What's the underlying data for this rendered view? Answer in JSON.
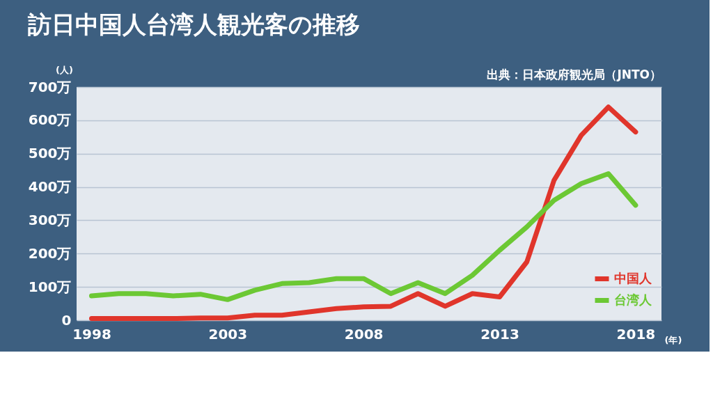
{
  "chart_data": {
    "type": "line",
    "title": "訪日中国人台湾人観光客の推移",
    "ylabel": "(人)",
    "xlabel": "(年)",
    "annotations": [
      "出典：日本政府観光局（JNTO）"
    ],
    "x": [
      1998,
      1999,
      2000,
      2001,
      2002,
      2003,
      2004,
      2005,
      2006,
      2007,
      2008,
      2009,
      2010,
      2011,
      2012,
      2013,
      2014,
      2015,
      2016,
      2017,
      2018
    ],
    "series": [
      {
        "name": "中国人",
        "color": "#e0352b",
        "values": [
          5,
          5,
          5,
          5,
          7,
          7,
          15,
          15,
          25,
          35,
          40,
          42,
          80,
          42,
          80,
          70,
          175,
          420,
          555,
          640,
          565
        ]
      },
      {
        "name": "台湾人",
        "color": "#6cc834",
        "values": [
          73,
          80,
          80,
          73,
          78,
          62,
          90,
          110,
          113,
          125,
          125,
          80,
          113,
          80,
          135,
          210,
          280,
          360,
          410,
          440,
          345
        ]
      }
    ],
    "xlim": [
      1997.45,
      2018.95
    ],
    "xticks": [
      1998,
      2003,
      2008,
      2013,
      2018
    ],
    "ylim": [
      0,
      700
    ],
    "yticks": [
      0,
      {
        "value": 100,
        "label": "100万"
      },
      {
        "value": 200,
        "label": "200万"
      },
      {
        "value": 300,
        "label": "300万"
      },
      {
        "value": 400,
        "label": "400万"
      },
      {
        "value": 500,
        "label": "500万"
      },
      {
        "value": 600,
        "label": "600万"
      },
      {
        "value": 700,
        "label": "700万"
      }
    ],
    "grid": "y",
    "legend": "bottom right",
    "marker": "none",
    "line_style": "solid"
  }
}
